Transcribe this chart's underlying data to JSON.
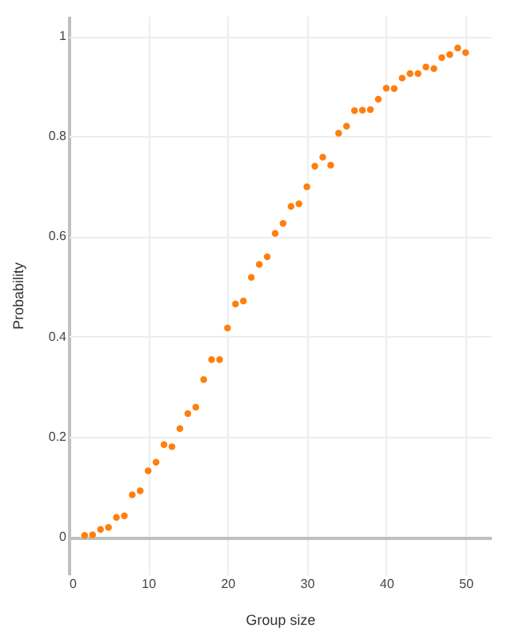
{
  "chart_data": {
    "type": "scatter",
    "xlabel": "Group size",
    "ylabel": "Probability",
    "x": [
      2,
      3,
      4,
      5,
      6,
      7,
      8,
      9,
      10,
      11,
      12,
      13,
      14,
      15,
      16,
      17,
      18,
      19,
      20,
      21,
      22,
      23,
      24,
      25,
      26,
      27,
      28,
      29,
      30,
      31,
      32,
      33,
      34,
      35,
      36,
      37,
      38,
      39,
      40,
      41,
      42,
      43,
      44,
      45,
      46,
      47,
      48,
      49,
      50
    ],
    "series": [
      {
        "color": "#ff7f0e",
        "values": [
          0.003,
          0.004,
          0.015,
          0.019,
          0.039,
          0.042,
          0.084,
          0.092,
          0.132,
          0.149,
          0.184,
          0.18,
          0.216,
          0.246,
          0.259,
          0.314,
          0.354,
          0.354,
          0.417,
          0.465,
          0.471,
          0.518,
          0.544,
          0.559,
          0.606,
          0.626,
          0.66,
          0.665,
          0.699,
          0.74,
          0.758,
          0.742,
          0.806,
          0.82,
          0.851,
          0.852,
          0.853,
          0.874,
          0.896,
          0.895,
          0.916,
          0.925,
          0.925,
          0.938,
          0.935,
          0.957,
          0.963,
          0.976,
          0.967
        ]
      }
    ],
    "xlim": [
      0,
      53.2
    ],
    "ylim": [
      -0.075,
      1.04
    ],
    "xticks": [
      0,
      10,
      20,
      30,
      40,
      50
    ],
    "yticks": [
      0,
      0.2,
      0.4,
      0.6,
      0.8,
      1
    ],
    "grid": true,
    "marker": "circle"
  }
}
